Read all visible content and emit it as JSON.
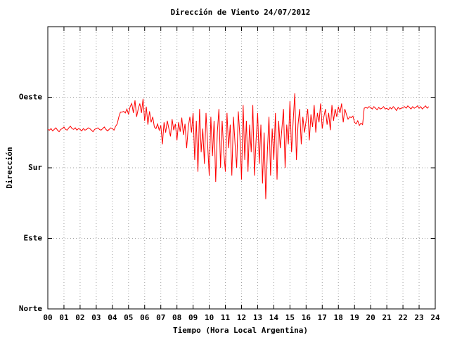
{
  "chart_data": {
    "type": "line",
    "title": "Dirección de Viento 24/07/2012",
    "xlabel": "Tiempo (Hora Local Argentina)",
    "ylabel": "Dirección",
    "color": "#ff0000",
    "grid": true,
    "xlim": [
      0,
      24
    ],
    "ylim": [
      0,
      360
    ],
    "xticks": [
      {
        "value": 0,
        "label": "00"
      },
      {
        "value": 1,
        "label": "01"
      },
      {
        "value": 2,
        "label": "02"
      },
      {
        "value": 3,
        "label": "03"
      },
      {
        "value": 4,
        "label": "04"
      },
      {
        "value": 5,
        "label": "05"
      },
      {
        "value": 6,
        "label": "06"
      },
      {
        "value": 7,
        "label": "07"
      },
      {
        "value": 8,
        "label": "08"
      },
      {
        "value": 9,
        "label": "09"
      },
      10,
      11,
      12,
      13,
      14,
      15,
      16,
      17,
      18,
      19,
      20,
      21,
      22,
      23,
      24
    ],
    "yticks": [
      {
        "value": 0,
        "label": "Norte"
      },
      {
        "value": 90,
        "label": "Este"
      },
      {
        "value": 180,
        "label": "Sur"
      },
      {
        "value": 270,
        "label": "Oeste"
      },
      {
        "value": 360,
        "label": ""
      }
    ],
    "x": [
      0,
      0.1,
      0.2,
      0.3,
      0.4,
      0.5,
      0.6,
      0.7,
      0.8,
      0.9,
      1,
      1.1,
      1.2,
      1.3,
      1.4,
      1.5,
      1.6,
      1.7,
      1.8,
      1.9,
      2,
      2.1,
      2.2,
      2.3,
      2.4,
      2.5,
      2.6,
      2.7,
      2.8,
      2.9,
      3,
      3.1,
      3.2,
      3.3,
      3.4,
      3.5,
      3.6,
      3.7,
      3.8,
      3.9,
      4,
      4.1,
      4.2,
      4.3,
      4.4,
      4.5,
      4.6,
      4.7,
      4.8,
      4.9,
      5,
      5.1,
      5.2,
      5.3,
      5.4,
      5.5,
      5.6,
      5.7,
      5.8,
      5.9,
      6,
      6.1,
      6.2,
      6.3,
      6.4,
      6.5,
      6.6,
      6.7,
      6.8,
      6.9,
      7,
      7.1,
      7.2,
      7.3,
      7.4,
      7.5,
      7.6,
      7.7,
      7.8,
      7.9,
      8,
      8.1,
      8.2,
      8.3,
      8.4,
      8.5,
      8.6,
      8.7,
      8.8,
      8.9,
      9,
      9.1,
      9.2,
      9.3,
      9.4,
      9.5,
      9.6,
      9.7,
      9.8,
      9.9,
      10,
      10.1,
      10.2,
      10.3,
      10.4,
      10.5,
      10.6,
      10.7,
      10.8,
      10.9,
      11,
      11.1,
      11.2,
      11.3,
      11.4,
      11.5,
      11.6,
      11.7,
      11.8,
      11.9,
      12,
      12.1,
      12.2,
      12.3,
      12.4,
      12.5,
      12.6,
      12.7,
      12.8,
      12.9,
      13,
      13.1,
      13.2,
      13.3,
      13.4,
      13.5,
      13.6,
      13.7,
      13.8,
      13.9,
      14,
      14.1,
      14.2,
      14.3,
      14.4,
      14.5,
      14.6,
      14.7,
      14.8,
      14.9,
      15,
      15.1,
      15.2,
      15.3,
      15.4,
      15.5,
      15.6,
      15.7,
      15.8,
      15.9,
      16,
      16.1,
      16.2,
      16.3,
      16.4,
      16.5,
      16.6,
      16.7,
      16.8,
      16.9,
      17,
      17.1,
      17.2,
      17.3,
      17.4,
      17.5,
      17.6,
      17.7,
      17.8,
      17.9,
      18,
      18.1,
      18.2,
      18.3,
      18.4,
      18.5,
      18.6,
      18.7,
      18.8,
      18.9,
      19,
      19.1,
      19.2,
      19.3,
      19.4,
      19.5,
      19.6,
      19.7,
      19.8,
      19.9,
      20,
      20.1,
      20.2,
      20.3,
      20.4,
      20.5,
      20.6,
      20.7,
      20.8,
      20.9,
      21,
      21.1,
      21.2,
      21.3,
      21.4,
      21.5,
      21.6,
      21.7,
      21.8,
      21.9,
      22,
      22.1,
      22.2,
      22.3,
      22.4,
      22.5,
      22.6,
      22.7,
      22.8,
      22.9,
      23,
      23.1,
      23.2,
      23.3,
      23.4,
      23.5,
      23.6
    ],
    "values": [
      229,
      228,
      230,
      227,
      229,
      231,
      228,
      226,
      229,
      230,
      232,
      229,
      228,
      231,
      233,
      230,
      229,
      231,
      228,
      230,
      229,
      227,
      230,
      228,
      229,
      231,
      230,
      228,
      226,
      229,
      230,
      231,
      229,
      228,
      230,
      232,
      229,
      227,
      229,
      231,
      230,
      228,
      233,
      236,
      245,
      251,
      251,
      252,
      250,
      255,
      248,
      258,
      262,
      250,
      266,
      245,
      255,
      262,
      250,
      268,
      240,
      258,
      235,
      252,
      238,
      245,
      232,
      230,
      236,
      228,
      234,
      210,
      238,
      225,
      240,
      230,
      220,
      242,
      228,
      236,
      215,
      238,
      226,
      244,
      222,
      236,
      205,
      232,
      245,
      225,
      250,
      190,
      240,
      175,
      255,
      200,
      230,
      185,
      250,
      210,
      170,
      245,
      195,
      240,
      162,
      225,
      255,
      180,
      240,
      200,
      175,
      250,
      205,
      235,
      170,
      245,
      210,
      180,
      252,
      220,
      165,
      260,
      190,
      240,
      175,
      235,
      200,
      260,
      170,
      215,
      250,
      185,
      235,
      160,
      225,
      140,
      200,
      245,
      170,
      230,
      190,
      250,
      165,
      240,
      205,
      230,
      255,
      180,
      235,
      210,
      265,
      200,
      240,
      275,
      190,
      235,
      255,
      210,
      245,
      225,
      240,
      255,
      215,
      248,
      232,
      260,
      225,
      250,
      238,
      262,
      230,
      245,
      255,
      235,
      250,
      228,
      260,
      240,
      255,
      245,
      258,
      250,
      262,
      238,
      255,
      248,
      242,
      245,
      244,
      246,
      238,
      236,
      240,
      234,
      237,
      235,
      256,
      257,
      256,
      258,
      257,
      255,
      258,
      256,
      254,
      257,
      255,
      256,
      258,
      255,
      256,
      254,
      257,
      255,
      258,
      256,
      253,
      257,
      255,
      256,
      257,
      258,
      256,
      259,
      257,
      255,
      258,
      256,
      257,
      259,
      256,
      258,
      255,
      257,
      259,
      256,
      258
    ]
  }
}
